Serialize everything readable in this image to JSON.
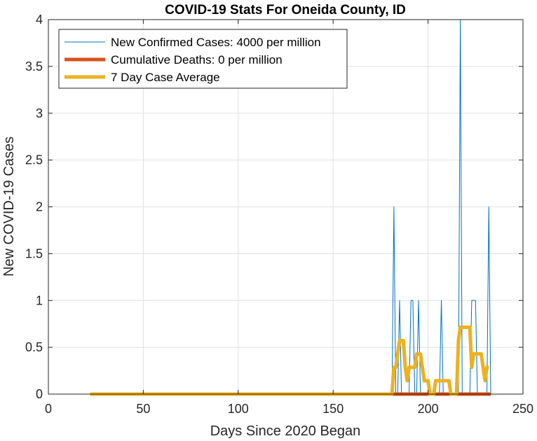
{
  "chart_data": {
    "type": "line",
    "title": "COVID-19 Stats For Oneida County, ID",
    "xlabel": "Days Since 2020 Began",
    "ylabel": "New COVID-19 Cases",
    "xlim": [
      0,
      250
    ],
    "ylim": [
      0,
      4
    ],
    "xticks": [
      0,
      50,
      100,
      150,
      200,
      250
    ],
    "yticks": [
      0,
      0.5,
      1,
      1.5,
      2,
      2.5,
      3,
      3.5,
      4
    ],
    "xtick_labels": [
      "0",
      "50",
      "100",
      "150",
      "200",
      "250"
    ],
    "ytick_labels": [
      "0",
      "0.5",
      "1",
      "1.5",
      "2",
      "2.5",
      "3",
      "3.5",
      "4"
    ],
    "grid": true,
    "legend_position": "top-left",
    "series": [
      {
        "name": "New Confirmed Cases: 4000 per million",
        "color": "#0072BD",
        "x": [
          181,
          182,
          183,
          184,
          185,
          186,
          187,
          188,
          189,
          190,
          191,
          192,
          193,
          194,
          195,
          196,
          197,
          198,
          199,
          200,
          201,
          202,
          203,
          204,
          205,
          206,
          207,
          208,
          209,
          210,
          211,
          212,
          213,
          214,
          215,
          216,
          217,
          218,
          219,
          220,
          221,
          222,
          223,
          224,
          225,
          226,
          227,
          228,
          229,
          230,
          231,
          232,
          233
        ],
        "y": [
          0,
          2,
          0,
          0,
          1,
          0,
          0,
          0,
          0,
          0,
          1,
          1,
          0,
          0,
          1,
          0,
          0,
          0,
          0,
          0,
          0,
          0,
          0,
          0,
          0,
          0,
          1,
          0,
          0,
          0,
          0,
          0,
          0,
          0,
          0,
          0,
          4,
          0,
          0,
          0,
          0,
          0,
          1,
          1,
          1,
          0,
          0,
          0,
          0,
          0,
          0,
          2,
          0
        ]
      },
      {
        "name": "Cumulative Deaths: 0 per million",
        "color": "#D95319",
        "x": [
          22,
          233
        ],
        "y": [
          0,
          0
        ]
      },
      {
        "name": "7 Day Case Average",
        "color": "#EDB120",
        "x": [
          22,
          181,
          182,
          183,
          184,
          185,
          186,
          187,
          188,
          189,
          190,
          191,
          192,
          193,
          194,
          195,
          196,
          197,
          198,
          199,
          200,
          201,
          202,
          203,
          204,
          205,
          206,
          207,
          208,
          209,
          210,
          211,
          212,
          213,
          214,
          215,
          216,
          217,
          218,
          219,
          220,
          221,
          222,
          223,
          224,
          225,
          226,
          227,
          228,
          229,
          230,
          231,
          232
        ],
        "y": [
          0,
          0,
          0.286,
          0.286,
          0.429,
          0.571,
          0.571,
          0.571,
          0.286,
          0.143,
          0.286,
          0.286,
          0.286,
          0.286,
          0.429,
          0.429,
          0.429,
          0.286,
          0.143,
          0.143,
          0.143,
          0,
          0,
          0,
          0.143,
          0.143,
          0.143,
          0.143,
          0.143,
          0.143,
          0.143,
          0.143,
          0,
          0,
          0,
          0,
          0.571,
          0.714,
          0.714,
          0.714,
          0.714,
          0.714,
          0.714,
          0.286,
          0.429,
          0.429,
          0.429,
          0.429,
          0.429,
          0.286,
          0.143,
          0.286,
          0.286
        ]
      }
    ]
  }
}
